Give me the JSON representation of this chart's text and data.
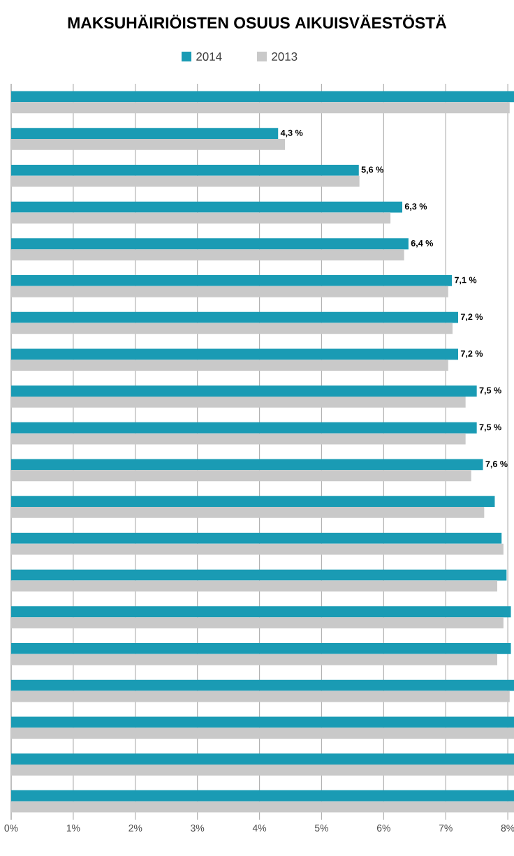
{
  "chart_data": {
    "type": "bar",
    "orientation": "horizontal",
    "title": "MAKSUHÄIRIÖISTEN  OSUUS AIKUISVÄESTÖSTÄ",
    "categories": [
      null,
      null,
      null,
      null,
      null,
      null,
      null,
      null,
      null,
      null,
      null,
      null,
      null,
      null,
      null,
      null,
      null,
      null,
      null,
      null
    ],
    "series": [
      {
        "name": "2014",
        "color": "#1a9bb4",
        "values": [
          8.1,
          4.3,
          5.6,
          6.3,
          6.4,
          7.1,
          7.2,
          7.2,
          7.5,
          7.5,
          7.6,
          7.79,
          7.9,
          7.98,
          8.05,
          8.05,
          8.1,
          8.1,
          8.1,
          8.1
        ],
        "value_labels": [
          null,
          "4,3 %",
          "5,6 %",
          "6,3 %",
          "6,4 %",
          "7,1 %",
          "7,2 %",
          "7,2 %",
          "7,5 %",
          "7,5 %",
          "7,6 %",
          null,
          null,
          null,
          null,
          null,
          null,
          null,
          null,
          null
        ]
      },
      {
        "name": "2013",
        "color": "#c9c9c9",
        "values": [
          8.03,
          4.41,
          5.61,
          6.11,
          6.33,
          7.04,
          7.11,
          7.04,
          7.32,
          7.32,
          7.41,
          7.62,
          7.93,
          7.83,
          7.93,
          7.83,
          8.03,
          8.1,
          8.1,
          8.1
        ]
      }
    ],
    "xlim": [
      0,
      8.1
    ],
    "xticks": [
      {
        "value": 0,
        "label": "0%"
      },
      {
        "value": 1,
        "label": "1%"
      },
      {
        "value": 2,
        "label": "2%"
      },
      {
        "value": 3,
        "label": "3%"
      },
      {
        "value": 4,
        "label": "4%"
      },
      {
        "value": 5,
        "label": "5%"
      },
      {
        "value": 6,
        "label": "6%"
      },
      {
        "value": 7,
        "label": "7%"
      },
      {
        "value": 8,
        "label": "8%"
      }
    ],
    "grid": "x",
    "legend": "top"
  }
}
